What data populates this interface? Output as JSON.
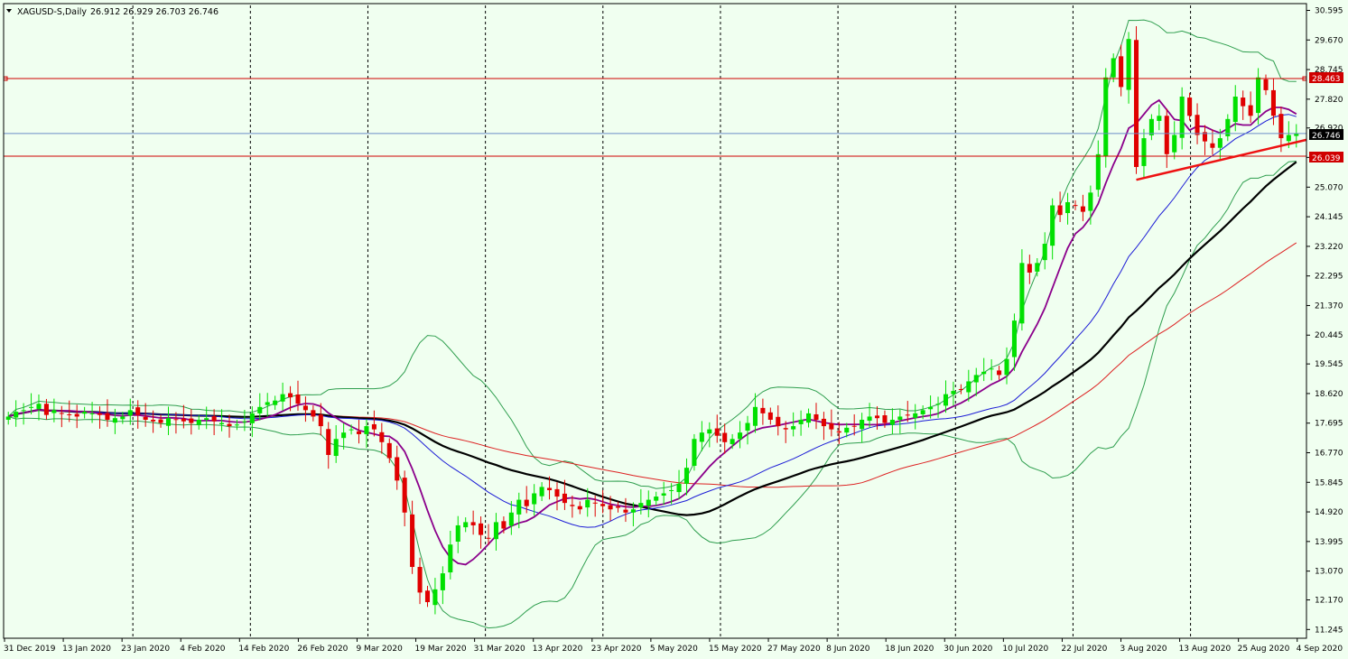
{
  "header": {
    "symbol_label": "XAGUSD-S,Daily",
    "ohlc": "26.912 26.929 26.703 26.746"
  },
  "price_tags": {
    "upper_line": "28.463",
    "current": "26.746",
    "lower_line": "26.039"
  },
  "colors": {
    "background": "#f0fff0",
    "bull": "#00e000",
    "bear": "#e00000",
    "grid": "#000000",
    "hline": "#d00000",
    "current_line": "#6b8ec8",
    "bb": "#2e9e4e",
    "ma_purple": "#8b008b",
    "ma_blue": "#1c1cd6",
    "ma_black": "#000000",
    "ma_red": "#dd2222",
    "trendline": "#ee1111"
  },
  "chart_data": {
    "type": "candlestick",
    "title": "XAGUSD-S,Daily",
    "ylim": [
      11.0,
      30.75
    ],
    "grid": "vertical dashed",
    "y_ticks": [
      "30.595",
      "29.670",
      "28.745",
      "27.820",
      "26.920",
      "26.000",
      "25.070",
      "24.145",
      "23.220",
      "22.295",
      "21.370",
      "20.445",
      "19.545",
      "18.620",
      "17.695",
      "16.770",
      "15.845",
      "14.920",
      "13.995",
      "13.070",
      "12.170",
      "11.245"
    ],
    "x_labels": [
      "31 Dec 2019",
      "13 Jan 2020",
      "23 Jan 2020",
      "4 Feb 2020",
      "14 Feb 2020",
      "26 Feb 2020",
      "9 Mar 2020",
      "19 Mar 2020",
      "31 Mar 2020",
      "13 Apr 2020",
      "23 Apr 2020",
      "5 May 2020",
      "15 May 2020",
      "27 May 2020",
      "8 Jun 2020",
      "18 Jun 2020",
      "30 Jun 2020",
      "10 Jul 2020",
      "22 Jul 2020",
      "3 Aug 2020",
      "13 Aug 2020",
      "25 Aug 2020",
      "4 Sep 2020"
    ],
    "horizontal_levels": [
      28.463,
      26.039
    ],
    "current_price": 26.746,
    "close": [
      17.9,
      18.05,
      18.1,
      18.2,
      18.3,
      17.95,
      18.1,
      18.0,
      17.95,
      17.9,
      18.05,
      18.0,
      17.95,
      17.8,
      17.85,
      17.9,
      18.1,
      17.95,
      17.8,
      17.75,
      17.7,
      17.85,
      17.8,
      17.75,
      17.7,
      17.8,
      17.85,
      17.75,
      17.7,
      17.6,
      17.65,
      17.75,
      18.0,
      18.2,
      18.35,
      18.4,
      18.6,
      18.5,
      18.3,
      18.1,
      17.9,
      17.6,
      16.7,
      17.2,
      17.4,
      17.5,
      17.35,
      17.6,
      17.5,
      17.1,
      16.6,
      15.9,
      14.9,
      13.2,
      12.4,
      12.1,
      12.5,
      13.0,
      13.9,
      14.5,
      14.6,
      14.5,
      14.2,
      14.1,
      14.6,
      14.4,
      14.9,
      15.3,
      15.1,
      15.5,
      15.7,
      15.6,
      15.4,
      15.2,
      15.1,
      15.0,
      15.3,
      15.2,
      15.1,
      15.0,
      15.05,
      14.9,
      15.0,
      15.2,
      15.3,
      15.4,
      15.5,
      15.6,
      15.8,
      16.3,
      17.2,
      17.4,
      17.5,
      17.3,
      17.1,
      17.2,
      17.4,
      17.7,
      18.2,
      18.0,
      17.8,
      17.6,
      17.5,
      17.6,
      17.8,
      18.0,
      17.8,
      17.6,
      17.5,
      17.4,
      17.55,
      17.6,
      17.8,
      17.9,
      17.85,
      17.7,
      17.8,
      17.9,
      17.95,
      18.0,
      18.1,
      18.2,
      18.3,
      18.6,
      18.7,
      18.75,
      19.0,
      19.2,
      19.3,
      19.4,
      19.2,
      19.7,
      20.9,
      22.7,
      22.4,
      22.7,
      23.3,
      24.5,
      24.2,
      24.6,
      24.5,
      24.3,
      24.9,
      26.1,
      28.5,
      29.1,
      28.2,
      29.7,
      25.7,
      26.6,
      27.2,
      27.3,
      26.1,
      26.7,
      27.9,
      27.3,
      26.7,
      26.5,
      26.3,
      26.6,
      27.2,
      27.9,
      27.6,
      27.3,
      28.5,
      28.1,
      27.3,
      26.6,
      26.7,
      26.75
    ]
  }
}
